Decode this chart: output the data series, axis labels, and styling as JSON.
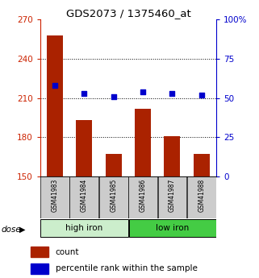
{
  "title": "GDS2073 / 1375460_at",
  "samples": [
    "GSM41983",
    "GSM41984",
    "GSM41985",
    "GSM41986",
    "GSM41987",
    "GSM41988"
  ],
  "counts": [
    258,
    193,
    167,
    202,
    181,
    167
  ],
  "percentiles": [
    58,
    53,
    51,
    54,
    53,
    52
  ],
  "bar_color": "#aa2200",
  "dot_color": "#0000cc",
  "left_ylim": [
    150,
    270
  ],
  "left_yticks": [
    150,
    180,
    210,
    240,
    270
  ],
  "right_ylim": [
    0,
    100
  ],
  "right_yticks": [
    0,
    25,
    50,
    75,
    100
  ],
  "right_yticklabels": [
    "0",
    "25",
    "50",
    "75",
    "100%"
  ],
  "left_color": "#cc2200",
  "right_color": "#0000cc",
  "legend_count_label": "count",
  "legend_pct_label": "percentile rank within the sample",
  "xlabel_bg": "#cccccc",
  "high_iron_color": "#cceecc",
  "low_iron_color": "#44cc44",
  "grid_vals": [
    180,
    210,
    240
  ],
  "group_split": 3
}
